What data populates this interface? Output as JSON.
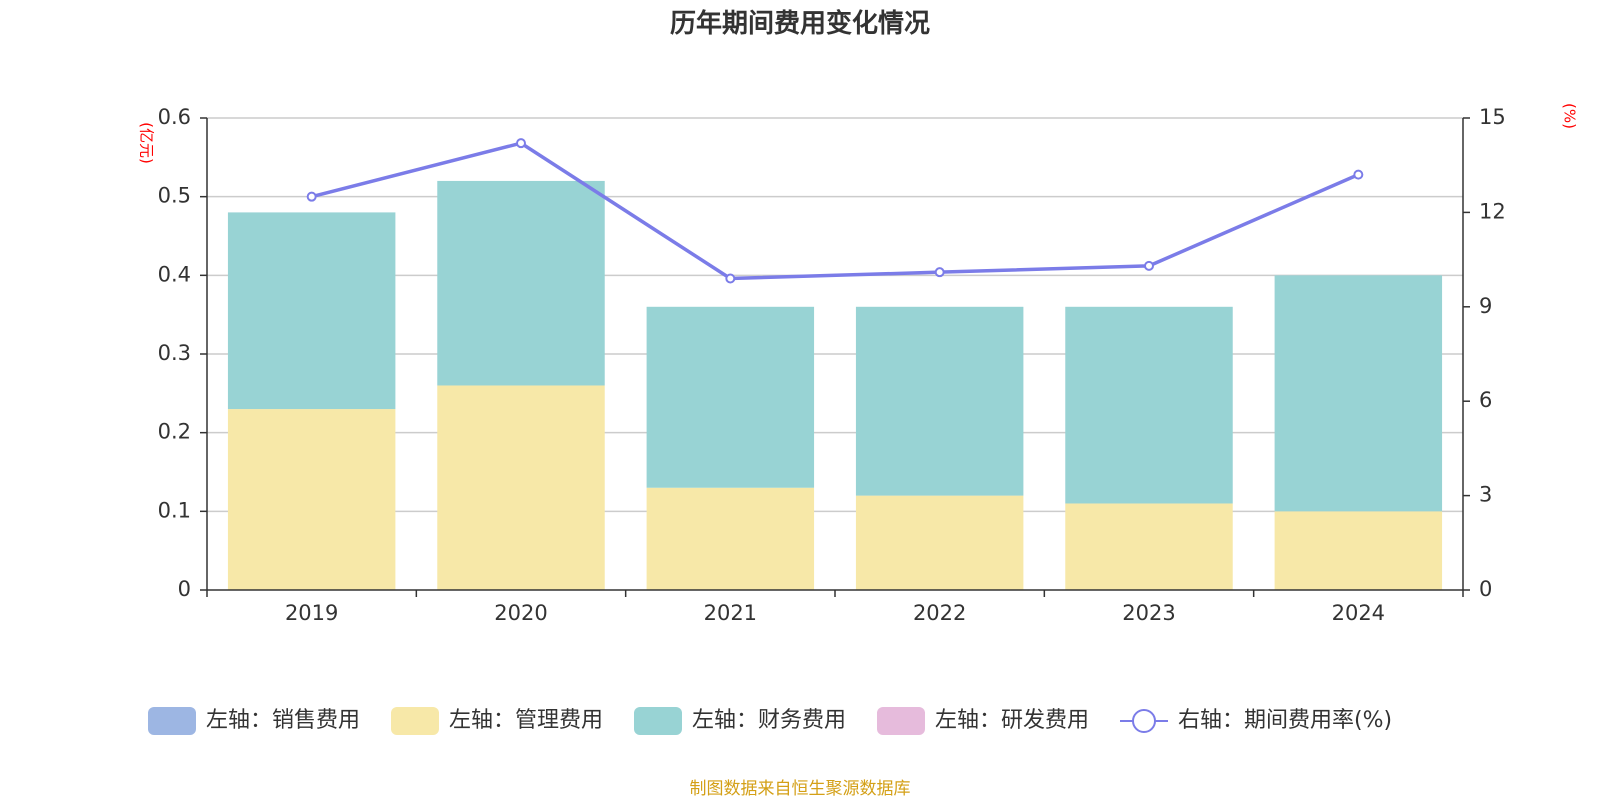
{
  "chart_data": {
    "type": "bar",
    "title": "历年期间费用变化情况",
    "categories": [
      "2019",
      "2020",
      "2021",
      "2022",
      "2023",
      "2024"
    ],
    "left_axis": {
      "unit": "(亿元)",
      "ylim": [
        0,
        0.6
      ],
      "ticks": [
        "0",
        "0.1",
        "0.2",
        "0.3",
        "0.4",
        "0.5",
        "0.6"
      ]
    },
    "right_axis": {
      "unit": "(%)",
      "ylim": [
        0,
        15
      ],
      "ticks": [
        "0",
        "3",
        "6",
        "9",
        "12",
        "15"
      ]
    },
    "stacked": true,
    "grid": true,
    "legend_position": "bottom",
    "series": [
      {
        "name": "左轴：销售费用",
        "type": "bar",
        "axis": "left",
        "color": "#9db6e3",
        "values": [
          0,
          0,
          0,
          0,
          0,
          0
        ]
      },
      {
        "name": "左轴：管理费用",
        "type": "bar",
        "axis": "left",
        "color": "#f7e8a8",
        "values": [
          0.23,
          0.26,
          0.13,
          0.12,
          0.11,
          0.1
        ]
      },
      {
        "name": "左轴：财务费用",
        "type": "bar",
        "axis": "left",
        "color": "#98d3d4",
        "values": [
          0.25,
          0.26,
          0.23,
          0.24,
          0.25,
          0.3
        ]
      },
      {
        "name": "左轴：研发费用",
        "type": "bar",
        "axis": "left",
        "color": "#e6bbdc",
        "values": [
          0,
          0,
          0,
          0,
          0,
          0
        ]
      },
      {
        "name": "右轴：期间费用率(%)",
        "type": "line",
        "axis": "right",
        "color": "#7b7ce8",
        "values": [
          12.5,
          14.2,
          9.9,
          10.1,
          10.3,
          13.2
        ]
      }
    ]
  },
  "footer": {
    "source": "制图数据来自恒生聚源数据库"
  }
}
